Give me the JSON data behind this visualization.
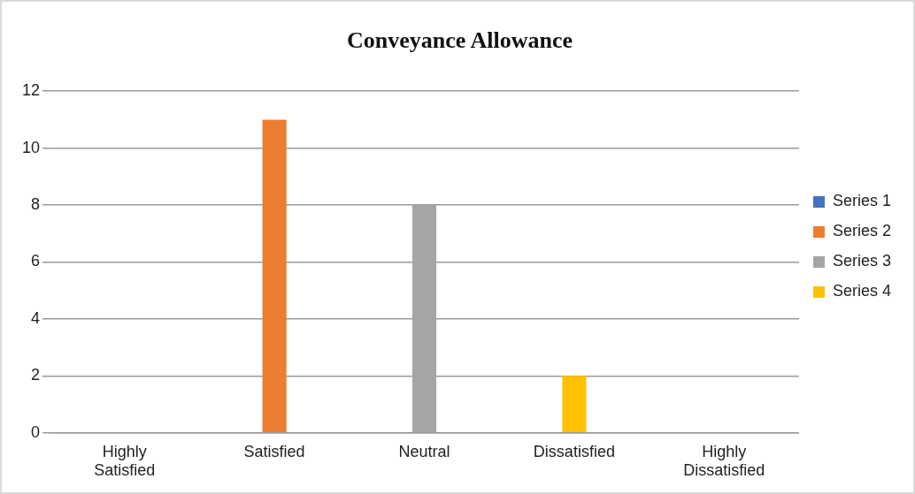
{
  "chart_data": {
    "type": "bar",
    "title": "Conveyance Allowance",
    "categories": [
      "Highly Satisfied",
      "Satisfied",
      "Neutral",
      "Dissatisfied",
      "Highly Dissatisfied"
    ],
    "series": [
      {
        "name": "Series 1",
        "color": "#4472c4",
        "values": [
          0,
          null,
          null,
          null,
          null
        ]
      },
      {
        "name": "Series 2",
        "color": "#ed7d31",
        "values": [
          null,
          11,
          null,
          null,
          null
        ]
      },
      {
        "name": "Series 3",
        "color": "#a5a5a5",
        "values": [
          null,
          null,
          8,
          null,
          null
        ]
      },
      {
        "name": "Series 4",
        "color": "#ffc000",
        "values": [
          null,
          null,
          null,
          2,
          null
        ]
      }
    ],
    "ylim": [
      0,
      12
    ],
    "yticks": [
      0,
      2,
      4,
      6,
      8,
      10,
      12
    ],
    "grid": "y",
    "legend": "right"
  }
}
